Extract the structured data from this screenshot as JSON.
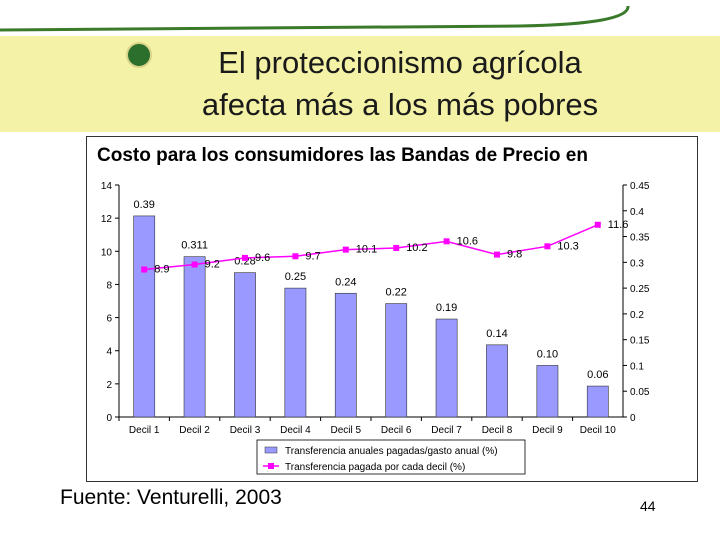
{
  "slide": {
    "title_line1": "El proteccionismo agrícola",
    "title_line2": "afecta más a los más pobres",
    "source": "Fuente: Venturelli, 2003",
    "page_number": "44",
    "colors": {
      "title_band": "#f4f2a6",
      "bar": "#9999ff",
      "line": "#ff00ff",
      "bullet": "#2c6e2c"
    }
  },
  "chart_data": {
    "type": "bar+line",
    "title": "Costo para los consumidores las Bandas de Precio en",
    "categories": [
      "Decil 1",
      "Decil 2",
      "Decil 3",
      "Decil 4",
      "Decil 5",
      "Decil 6",
      "Decil 7",
      "Decil 8",
      "Decil 9",
      "Decil 10"
    ],
    "series": [
      {
        "name": "Transferencia anuales pagadas/gasto anual (%)",
        "type": "bar",
        "axis": "right",
        "values": [
          0.39,
          0.311,
          0.28,
          0.25,
          0.24,
          0.22,
          0.19,
          0.14,
          0.1,
          0.06
        ],
        "labels": [
          "0.39",
          "0.311",
          "0.28",
          "0.25",
          "0.24",
          "0.22",
          "0.19",
          "0.14",
          "0.10",
          "0.06"
        ]
      },
      {
        "name": "Transferencia pagada por cada decil (%)",
        "type": "line",
        "axis": "left",
        "values": [
          8.9,
          9.2,
          9.6,
          9.7,
          10.1,
          10.2,
          10.6,
          9.8,
          10.3,
          11.6
        ],
        "labels": [
          "8.9",
          "9.2",
          "9.6",
          "9.7",
          "10.1",
          "10.2",
          "10.6",
          "9.8",
          "10.3",
          "11.6"
        ]
      }
    ],
    "y_left": {
      "min": 0,
      "max": 14,
      "ticks": [
        "0",
        "2",
        "4",
        "6",
        "8",
        "10",
        "12",
        "14"
      ]
    },
    "y_right": {
      "min": 0,
      "max": 0.45,
      "ticks": [
        "0",
        "0.05",
        "0.1",
        "0.15",
        "0.2",
        "0.25",
        "0.3",
        "0.35",
        "0.4",
        "0.45"
      ]
    },
    "grid": false,
    "legend_position": "bottom"
  }
}
